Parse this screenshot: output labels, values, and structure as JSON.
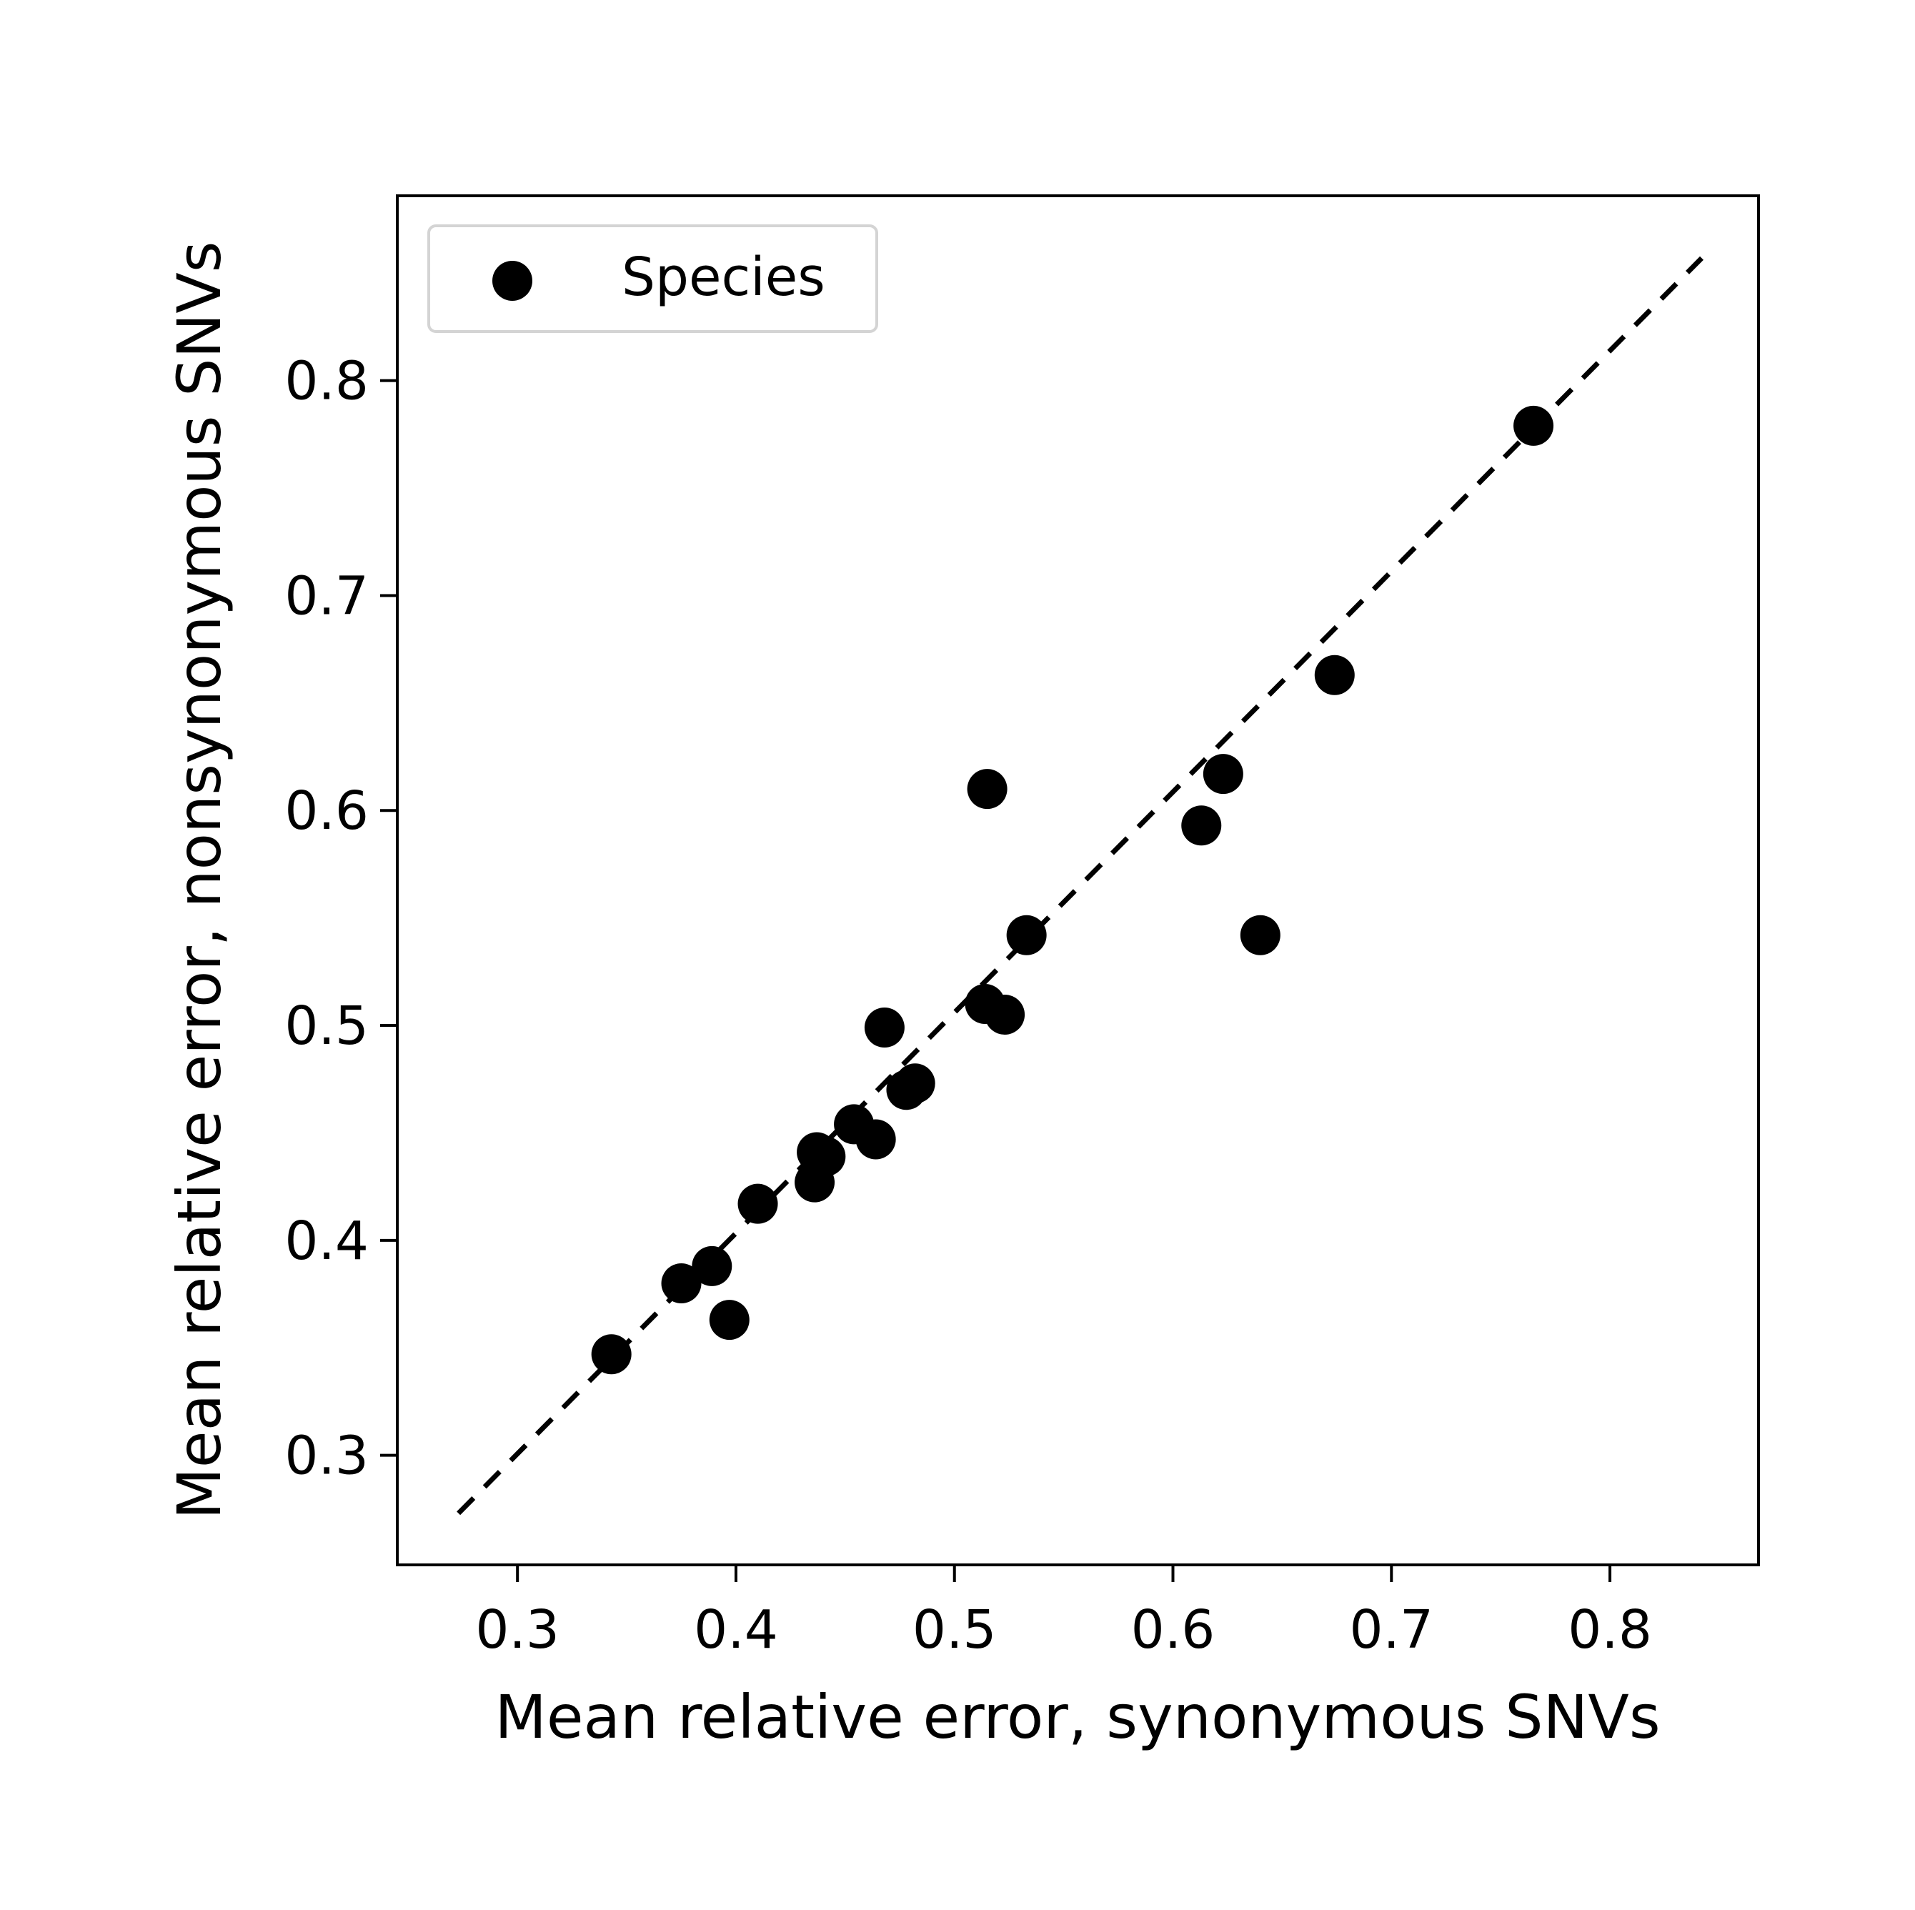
{
  "chart_data": {
    "type": "scatter",
    "title": "",
    "xlabel": "Mean relative error, synonymous SNVs",
    "ylabel": "Mean relative error, nonsynonymous SNVs",
    "xlim": [
      0.245,
      0.868
    ],
    "ylim": [
      0.249,
      0.886
    ],
    "x_ticks": [
      0.3,
      0.4,
      0.5,
      0.6,
      0.7,
      0.8
    ],
    "x_tick_labels": [
      "0.3",
      "0.4",
      "0.5",
      "0.6",
      "0.7",
      "0.8"
    ],
    "y_ticks": [
      0.3,
      0.4,
      0.5,
      0.6,
      0.7,
      0.8
    ],
    "y_tick_labels": [
      "0.3",
      "0.4",
      "0.5",
      "0.6",
      "0.7",
      "0.8"
    ],
    "grid": false,
    "legend": {
      "location": "upper left",
      "entries": [
        {
          "label": "Species",
          "marker": "circle",
          "color": "#000000"
        }
      ]
    },
    "series": [
      {
        "name": "Species",
        "color": "#000000",
        "marker": "circle",
        "points": [
          {
            "x": 0.343,
            "y": 0.347
          },
          {
            "x": 0.375,
            "y": 0.38
          },
          {
            "x": 0.389,
            "y": 0.388
          },
          {
            "x": 0.397,
            "y": 0.363
          },
          {
            "x": 0.41,
            "y": 0.417
          },
          {
            "x": 0.436,
            "y": 0.427
          },
          {
            "x": 0.437,
            "y": 0.441
          },
          {
            "x": 0.441,
            "y": 0.439
          },
          {
            "x": 0.454,
            "y": 0.454
          },
          {
            "x": 0.464,
            "y": 0.447
          },
          {
            "x": 0.468,
            "y": 0.499
          },
          {
            "x": 0.478,
            "y": 0.47
          },
          {
            "x": 0.482,
            "y": 0.473
          },
          {
            "x": 0.514,
            "y": 0.51
          },
          {
            "x": 0.515,
            "y": 0.61
          },
          {
            "x": 0.523,
            "y": 0.505
          },
          {
            "x": 0.533,
            "y": 0.542
          },
          {
            "x": 0.613,
            "y": 0.593
          },
          {
            "x": 0.623,
            "y": 0.617
          },
          {
            "x": 0.64,
            "y": 0.542
          },
          {
            "x": 0.674,
            "y": 0.663
          },
          {
            "x": 0.765,
            "y": 0.779
          }
        ]
      }
    ],
    "reference_line": {
      "style": "dashed",
      "color": "#000000",
      "from": {
        "x": 0.273,
        "y": 0.273
      },
      "to": {
        "x": 0.842,
        "y": 0.857
      }
    }
  }
}
